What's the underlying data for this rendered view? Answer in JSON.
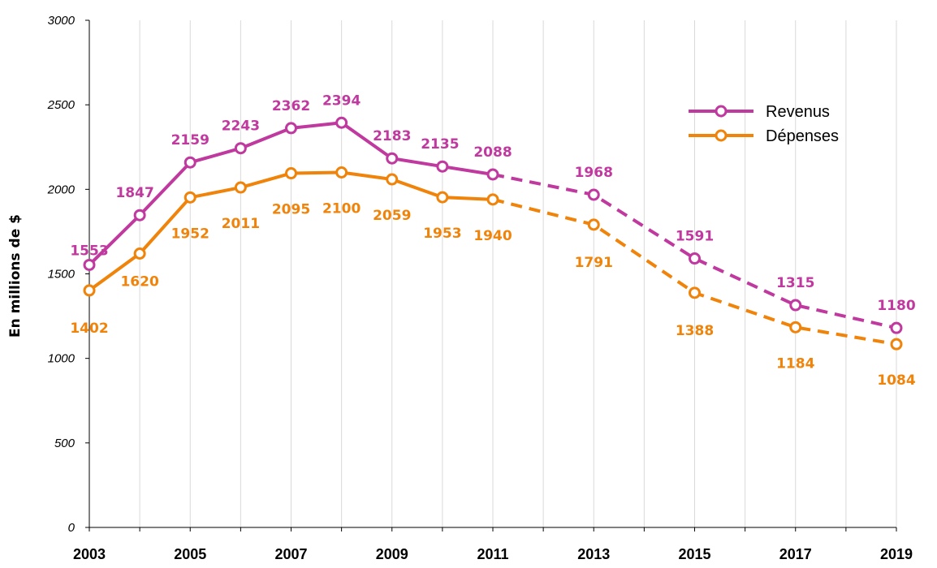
{
  "chart_data": {
    "type": "line",
    "title": "",
    "xlabel": "",
    "ylabel": "En millions de $",
    "ylim": [
      0,
      3000
    ],
    "yticks": [
      0,
      500,
      1000,
      1500,
      2000,
      2500,
      3000
    ],
    "xlim": [
      2003,
      2019
    ],
    "xticks": [
      2003,
      2005,
      2007,
      2009,
      2011,
      2013,
      2015,
      2017,
      2019
    ],
    "grid": "vertical",
    "legend": "top-right",
    "series": [
      {
        "name": "Revenus",
        "color": "#c0399f",
        "x": [
          2003,
          2004,
          2005,
          2006,
          2007,
          2008,
          2009,
          2010,
          2011,
          2013,
          2015,
          2017,
          2019
        ],
        "values": [
          1553,
          1847,
          2159,
          2243,
          2362,
          2394,
          2183,
          2135,
          2088,
          1968,
          1591,
          1315,
          1180
        ],
        "dashed_from": 2011
      },
      {
        "name": "Dépenses",
        "color": "#f0830a",
        "x": [
          2003,
          2004,
          2005,
          2006,
          2007,
          2008,
          2009,
          2010,
          2011,
          2013,
          2015,
          2017,
          2019
        ],
        "values": [
          1402,
          1620,
          1952,
          2011,
          2095,
          2100,
          2059,
          1953,
          1940,
          1791,
          1388,
          1184,
          1084
        ],
        "dashed_from": 2011
      }
    ]
  }
}
